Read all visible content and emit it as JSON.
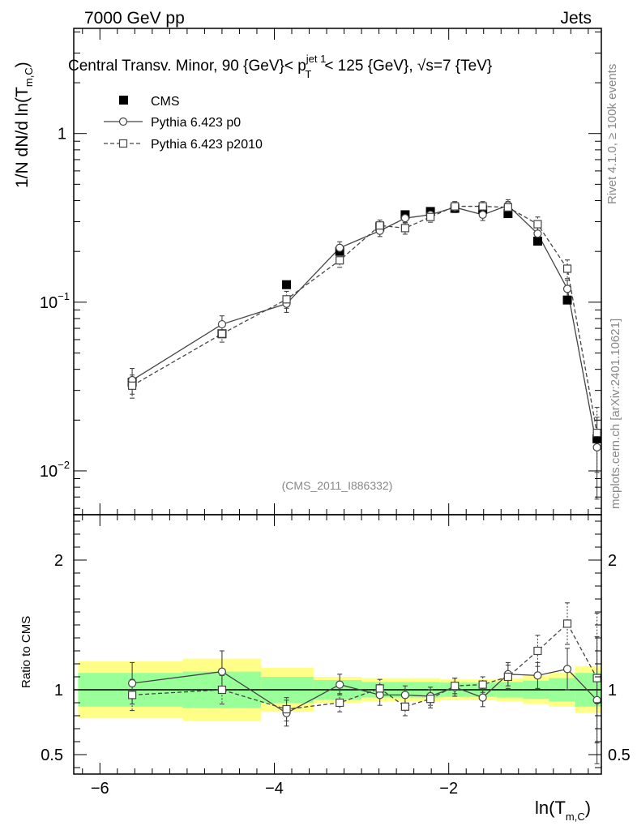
{
  "header": {
    "energy_label": "7000 GeV pp",
    "category_label": "Jets",
    "title_prefix": "Central Transv. Minor, 90 {GeV}< p",
    "title_sup": "jet 1",
    "title_sub": "T",
    "title_suffix": "< 125 {GeV}, √s=7 {TeV}",
    "rivet_label": "Rivet 4.1.0, ≥ 100k events",
    "source_label": "mcplots.cern.ch [arXiv:2401.10621]",
    "analysis_label": "(CMS_2011_I886332)"
  },
  "colors": {
    "data": "#000000",
    "mc": "#444444",
    "band_inner": "#99ff99",
    "band_outer": "#ffff88",
    "watermark": "#888888"
  },
  "chart_data": {
    "type": "scatter",
    "xlabel": "ln(T",
    "xlabel_sub": "m,C",
    "ylabel": "1/N    dN/d ln(T",
    "ylabel_sub": "m,C",
    "xlim": [
      -6.3,
      -0.25
    ],
    "ylim_main": [
      0.0055,
      4.2
    ],
    "yscale_main": "log",
    "ylim_ratio": [
      0.35,
      2.35
    ],
    "ratio_ylabel": "Ratio to CMS",
    "x_ticks": [
      {
        "value": -6,
        "label": "−6"
      },
      {
        "value": -4,
        "label": "−4"
      },
      {
        "value": -2,
        "label": "−2"
      }
    ],
    "main_y_ticks": [
      {
        "value": 1,
        "label": "1"
      },
      {
        "value": 0.1,
        "label": "10",
        "exp": "−1"
      },
      {
        "value": 0.01,
        "label": "10",
        "exp": "−2"
      }
    ],
    "ratio_y_ticks": [
      {
        "value": 2,
        "label": "2"
      },
      {
        "value": 1,
        "label": "1"
      },
      {
        "value": 0.5,
        "label": "0.5"
      }
    ],
    "legend": [
      {
        "key": "cms",
        "label": "CMS"
      },
      {
        "key": "p0",
        "label": "Pythia 6.423 p0"
      },
      {
        "key": "p2010",
        "label": "Pythia 6.423 p2010"
      }
    ],
    "bins": [
      [
        -6.25,
        -5.05
      ],
      [
        -5.05,
        -4.15
      ],
      [
        -4.15,
        -3.55
      ],
      [
        -3.55,
        -3.0
      ],
      [
        -3.0,
        -2.6
      ],
      [
        -2.6,
        -2.35
      ],
      [
        -2.35,
        -2.1
      ],
      [
        -2.1,
        -1.75
      ],
      [
        -1.75,
        -1.45
      ],
      [
        -1.45,
        -1.15
      ],
      [
        -1.15,
        -0.85
      ],
      [
        -0.85,
        -0.55
      ],
      [
        -0.55,
        -0.25
      ]
    ],
    "cms": {
      "name": "CMS",
      "x": [
        -5.63,
        -4.6,
        -3.86,
        -3.25,
        -2.79,
        -2.5,
        -2.21,
        -1.93,
        -1.61,
        -1.32,
        -0.98,
        -0.64,
        -0.3
      ],
      "y": [
        0.0335,
        0.065,
        0.127,
        0.2,
        0.28,
        0.33,
        0.345,
        0.36,
        0.355,
        0.335,
        0.23,
        0.103,
        0.0155
      ],
      "band_inner": [
        0.13,
        0.14,
        0.1,
        0.075,
        0.06,
        0.06,
        0.06,
        0.055,
        0.055,
        0.06,
        0.07,
        0.09,
        0.13
      ],
      "band_outer": [
        0.22,
        0.24,
        0.17,
        0.1,
        0.09,
        0.09,
        0.09,
        0.08,
        0.08,
        0.09,
        0.11,
        0.13,
        0.18
      ]
    },
    "series": [
      {
        "name": "Pythia 6.423 p0",
        "key": "p0",
        "x": [
          -5.63,
          -4.6,
          -3.86,
          -3.25,
          -2.79,
          -2.5,
          -2.21,
          -1.93,
          -1.61,
          -1.32,
          -0.98,
          -0.64,
          -0.3
        ],
        "y": [
          0.0345,
          0.074,
          0.098,
          0.21,
          0.265,
          0.315,
          0.33,
          0.365,
          0.33,
          0.375,
          0.255,
          0.12,
          0.0138
        ],
        "err": [
          0.006,
          0.009,
          0.011,
          0.018,
          0.02,
          0.02,
          0.02,
          0.025,
          0.025,
          0.03,
          0.025,
          0.015,
          0.007
        ],
        "ratio": [
          1.05,
          1.14,
          0.82,
          1.04,
          0.96,
          0.96,
          0.95,
          1.02,
          0.94,
          1.12,
          1.11,
          1.16,
          0.92
        ],
        "ratio_err": [
          0.16,
          0.16,
          0.1,
          0.08,
          0.08,
          0.07,
          0.07,
          0.07,
          0.07,
          0.09,
          0.1,
          0.16,
          0.49
        ]
      },
      {
        "name": "Pythia 6.423 p2010",
        "key": "p2010",
        "x": [
          -5.63,
          -4.6,
          -3.86,
          -3.25,
          -2.79,
          -2.5,
          -2.21,
          -1.93,
          -1.61,
          -1.32,
          -0.98,
          -0.64,
          -0.3
        ],
        "y": [
          0.032,
          0.065,
          0.104,
          0.177,
          0.285,
          0.275,
          0.32,
          0.37,
          0.37,
          0.365,
          0.29,
          0.158,
          0.0168
        ],
        "err": [
          0.005,
          0.007,
          0.012,
          0.016,
          0.022,
          0.022,
          0.022,
          0.025,
          0.025,
          0.03,
          0.03,
          0.02,
          0.007
        ],
        "ratio": [
          0.96,
          1.0,
          0.85,
          0.9,
          1.01,
          0.87,
          0.93,
          1.03,
          1.04,
          1.1,
          1.3,
          1.51,
          1.09
        ],
        "ratio_err": [
          0.12,
          0.11,
          0.09,
          0.07,
          0.07,
          0.07,
          0.07,
          0.06,
          0.06,
          0.09,
          0.12,
          0.16,
          0.5
        ]
      }
    ]
  }
}
